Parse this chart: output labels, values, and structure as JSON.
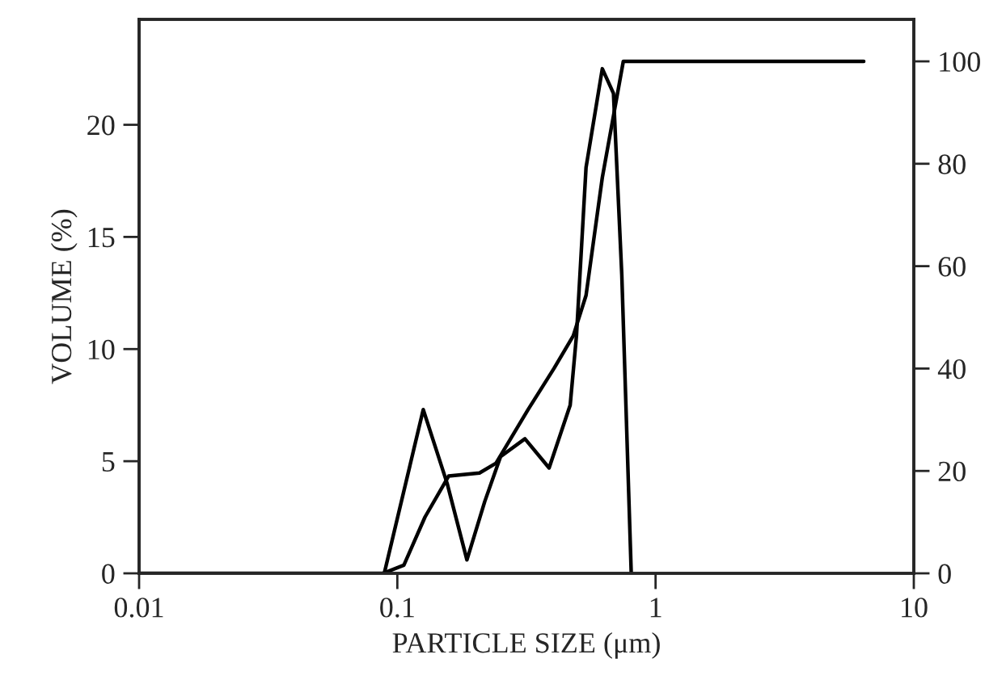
{
  "chart_data": {
    "type": "line",
    "xlabel": "PARTICLE SIZE (μm)",
    "ylabel": "VOLUME (%)",
    "log": "x",
    "xlim": [
      0.01,
      10
    ],
    "xticks": [
      0.01,
      0.1,
      1,
      10
    ],
    "ylim": [
      0,
      24.7
    ],
    "yticks": [
      0,
      5,
      10,
      15,
      20
    ],
    "y2lim": [
      0,
      108.2
    ],
    "y2ticks": [
      0,
      20,
      40,
      60,
      80,
      100
    ],
    "grid": false,
    "marker": "none",
    "line_style": "solid",
    "series": [
      {
        "color": "#000000",
        "x": [
          0.01,
          0.089,
          0.126,
          0.156,
          0.186,
          0.218,
          0.251,
          0.312,
          0.387,
          0.467,
          0.494,
          0.538,
          0.622,
          0.687,
          0.74,
          0.805
        ],
        "values": [
          0,
          0,
          7.3,
          4.0,
          0.6,
          3.2,
          5.2,
          6.0,
          4.7,
          7.5,
          10.6,
          18.1,
          22.5,
          21.4,
          13.3,
          0
        ]
      },
      {
        "color": "#000000",
        "axis": "y2",
        "x": [
          0.088,
          0.106,
          0.128,
          0.158,
          0.208,
          0.241,
          0.321,
          0.404,
          0.48,
          0.538,
          0.622,
          0.708,
          0.75,
          6.4
        ],
        "values": [
          0,
          1.6,
          11,
          19,
          19.6,
          21.5,
          32,
          40,
          46.4,
          54.3,
          77.3,
          93,
          100,
          100
        ]
      }
    ]
  }
}
